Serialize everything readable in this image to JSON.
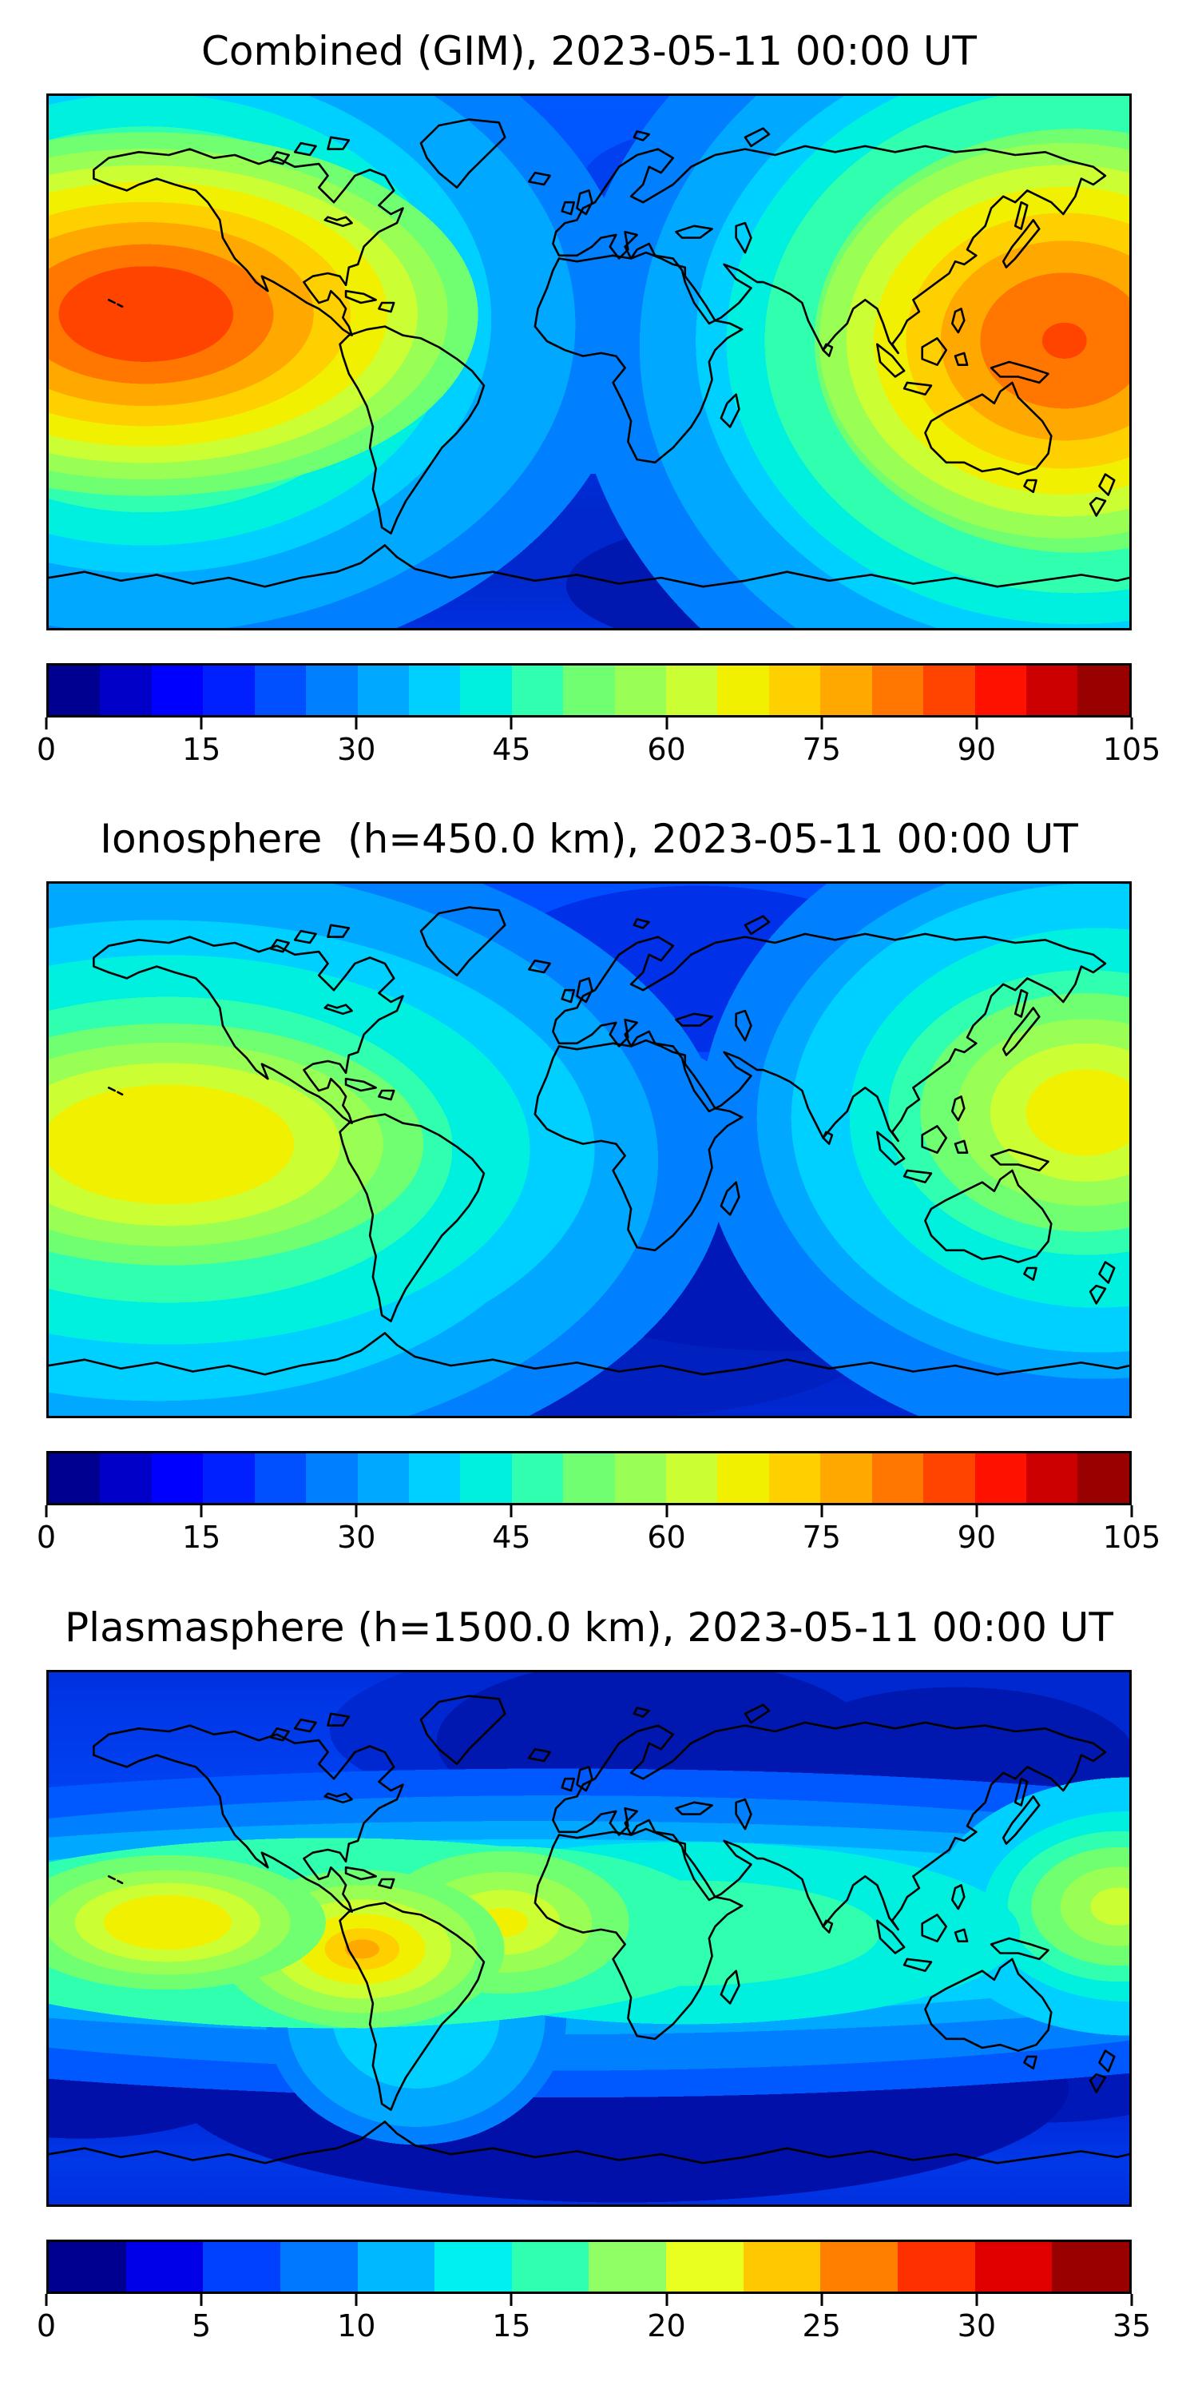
{
  "figure": {
    "background_color": "#ffffff",
    "coastline_color": "#000000",
    "frame_color": "#000000",
    "colormap": "jet"
  },
  "panels": [
    {
      "title": "Combined (GIM), 2023-05-11 00:00 UT",
      "colorbar": {
        "min": 0,
        "max": 105,
        "ticks": [
          "0",
          "15",
          "30",
          "45",
          "60",
          "75",
          "90",
          "105"
        ],
        "segment_colors": [
          "#000090",
          "#0000C8",
          "#0000FF",
          "#0020FF",
          "#0050FF",
          "#0080FF",
          "#00A8FF",
          "#00D0FF",
          "#00F0E0",
          "#30FFB0",
          "#70FF70",
          "#99FF55",
          "#CCFF33",
          "#F0F000",
          "#FFD000",
          "#FFA800",
          "#FF7700",
          "#FF4400",
          "#FF1100",
          "#CC0000",
          "#990000"
        ]
      }
    },
    {
      "title": "Ionosphere  (h=450.0 km), 2023-05-11 00:00 UT",
      "colorbar": {
        "min": 0,
        "max": 105,
        "ticks": [
          "0",
          "15",
          "30",
          "45",
          "60",
          "75",
          "90",
          "105"
        ],
        "segment_colors": [
          "#000090",
          "#0000C8",
          "#0000FF",
          "#0020FF",
          "#0050FF",
          "#0080FF",
          "#00A8FF",
          "#00D0FF",
          "#00F0E0",
          "#30FFB0",
          "#70FF70",
          "#99FF55",
          "#CCFF33",
          "#F0F000",
          "#FFD000",
          "#FFA800",
          "#FF7700",
          "#FF4400",
          "#FF1100",
          "#CC0000",
          "#990000"
        ]
      }
    },
    {
      "title": "Plasmasphere (h=1500.0 km), 2023-05-11 00:00 UT",
      "colorbar": {
        "min": 0,
        "max": 35,
        "ticks": [
          "0",
          "5",
          "10",
          "15",
          "20",
          "25",
          "30",
          "35"
        ],
        "segment_colors": [
          "#000090",
          "#0000E8",
          "#0040FF",
          "#0078FF",
          "#00B8FF",
          "#00F0F0",
          "#30FFB0",
          "#90FF66",
          "#E8FF20",
          "#FFC800",
          "#FF8000",
          "#FF3000",
          "#E00000",
          "#990000"
        ]
      }
    }
  ],
  "chart_data": [
    {
      "type": "heatmap",
      "title": "Combined (GIM), 2023-05-11 00:00 UT",
      "map_projection": "equirectangular world map, lon -180..180, lat -90..90, black coastlines",
      "value_range": [
        0,
        105
      ],
      "contour_interval": 5,
      "colormap": "jet (21 discrete filled-contour levels)",
      "colorbar_ticks": [
        0,
        15,
        30,
        45,
        60,
        75,
        90,
        105
      ],
      "legend_position": "horizontal colorbar below map",
      "hotspots": [
        {
          "region": "eastern equatorial Pacific, west of Central/South America",
          "approx_lon": -148,
          "approx_lat": 16,
          "peak_value": 88
        },
        {
          "region": "western Pacific east of Japan/Philippines",
          "approx_lon": 158,
          "approx_lat": 7,
          "peak_value": 85
        },
        {
          "region": "West Africa equatorial patch",
          "approx_lon": 4,
          "approx_lat": 7,
          "peak_value": 40
        }
      ],
      "background_values": "5-30 over mid/high latitudes; darkest (<10) over southern Indian Ocean and near northeast map corner"
    },
    {
      "type": "heatmap",
      "title": "Ionosphere  (h=450.0 km), 2023-05-11 00:00 UT",
      "map_projection": "equirectangular world map, lon -180..180, lat -90..90, black coastlines",
      "value_range": [
        0,
        105
      ],
      "contour_interval": 5,
      "colormap": "jet (21 discrete filled-contour levels)",
      "colorbar_ticks": [
        0,
        15,
        30,
        45,
        60,
        75,
        90,
        105
      ],
      "legend_position": "horizontal colorbar below map",
      "hotspots": [
        {
          "region": "eastern equatorial Pacific",
          "approx_lon": -139,
          "approx_lat": 2,
          "peak_value": 68
        },
        {
          "region": "western Pacific at right map edge",
          "approx_lon": 166,
          "approx_lat": 11,
          "peak_value": 68
        }
      ],
      "background_values": "5-25 elsewhere; large <10 region over southern Indian Ocean and south Atlantic"
    },
    {
      "type": "heatmap",
      "title": "Plasmasphere (h=1500.0 km), 2023-05-11 00:00 UT",
      "map_projection": "equirectangular world map, lon -180..180, lat -90..90, black coastlines",
      "value_range": [
        0,
        35
      ],
      "contour_interval": 2.5,
      "colormap": "jet (14 discrete filled-contour levels)",
      "colorbar_ticks": [
        0,
        5,
        10,
        15,
        20,
        25,
        30,
        35
      ],
      "legend_position": "horizontal colorbar below map",
      "hotspots": [
        {
          "region": "equatorial band spans full width near equator",
          "approx_lat": 0,
          "typical_value": 12
        },
        {
          "region": "central Pacific blob",
          "approx_lon": -140,
          "approx_lat": 5,
          "peak_value": 21
        },
        {
          "region": "Peru / western South America blob with small orange core",
          "approx_lon": -76,
          "approx_lat": -4,
          "peak_value": 24
        },
        {
          "region": "Atlantic blob east of Brazil",
          "approx_lon": -29,
          "approx_lat": 5,
          "peak_value": 21
        },
        {
          "region": "western Pacific at right map edge",
          "approx_lon": 176,
          "approx_lat": 11,
          "peak_value": 19
        }
      ],
      "background_values": "2.5-7.5 at mid/high latitudes; darkest (<2.5) patches north of Europe/NE Asia and in southern oceans"
    }
  ]
}
